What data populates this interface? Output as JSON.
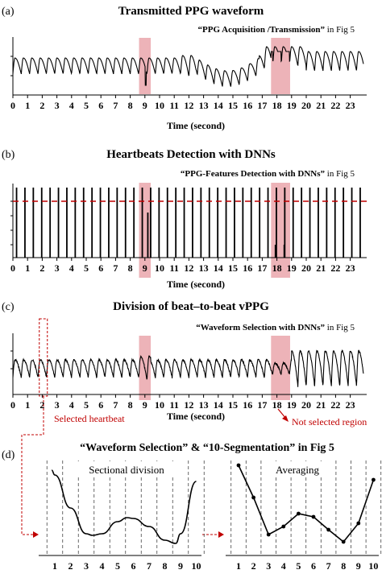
{
  "panels": [
    {
      "letter": "(a)",
      "title": "Transmitted PPG waveform",
      "caption_quote": "“PPG Acquisition /Transmission”",
      "caption_tail": " in Fig 5",
      "xlabel": "Time (second)",
      "ticks": [
        "0",
        "1",
        "2",
        "3",
        "4",
        "5",
        "6",
        "7",
        "8",
        "9",
        "10",
        "11",
        "12",
        "13",
        "14",
        "15",
        "16",
        "17",
        "18",
        "19",
        "20",
        "21",
        "22",
        "23"
      ]
    },
    {
      "letter": "(b)",
      "title": "Heartbeats Detection with DNNs",
      "caption_quote": "“PPG-Features Detection with DNNs”",
      "caption_tail": " in Fig 5",
      "xlabel": "Time (second)",
      "ticks": [
        "0",
        "1",
        "2",
        "3",
        "4",
        "5",
        "6",
        "7",
        "8",
        "9",
        "10",
        "11",
        "12",
        "13",
        "14",
        "15",
        "16",
        "17",
        "18",
        "19",
        "20",
        "21",
        "22",
        "23"
      ]
    },
    {
      "letter": "(c)",
      "title": "Division of beat–to-beat vPPG",
      "caption_quote": "“Waveform Selection with DNNs”",
      "caption_tail": " in Fig 5",
      "xlabel": "Time (second)",
      "ticks": [
        "0",
        "1",
        "2",
        "3",
        "4",
        "5",
        "6",
        "7",
        "8",
        "9",
        "10",
        "11",
        "12",
        "13",
        "14",
        "15",
        "16",
        "17",
        "18",
        "19",
        "20",
        "21",
        "22",
        "23"
      ],
      "selected_label": "Selected heartbeat",
      "not_selected_label": "Not selected region"
    }
  ],
  "panel_d": {
    "letter": "(d)",
    "title": "“Waveform Selection” & “10-Segmentation” in Fig 5",
    "left_label": "Sectional division",
    "right_label": "Averaging",
    "ticks": [
      "1",
      "2",
      "3",
      "4",
      "5",
      "6",
      "7",
      "8",
      "9",
      "10"
    ]
  },
  "chart_data": [
    {
      "type": "line",
      "panel": "a",
      "x_range": [
        0,
        24
      ],
      "highlight_regions": [
        [
          8.6,
          9.4
        ],
        [
          17.6,
          18.9
        ]
      ],
      "heart_rate_beats_per_second": 1.75
    },
    {
      "type": "bar",
      "panel": "b",
      "x_range": [
        0,
        24
      ],
      "threshold_line": "dashed-red",
      "highlight_regions": [
        [
          8.6,
          9.4
        ],
        [
          17.6,
          18.9
        ]
      ],
      "low_spike_times": [
        9.2,
        17.9,
        18.5
      ]
    },
    {
      "type": "line",
      "panel": "c",
      "x_range": [
        0,
        24
      ],
      "highlight_regions": [
        [
          8.6,
          9.4
        ],
        [
          17.6,
          18.9
        ]
      ],
      "selected_beat_window": [
        1.8,
        2.35
      ]
    },
    {
      "type": "line",
      "panel": "d-left",
      "x": [
        0.8,
        1,
        2,
        3,
        3.4,
        4,
        5,
        5.6,
        6,
        7,
        8,
        8.7,
        9,
        10
      ],
      "y": [
        0.92,
        0.86,
        0.45,
        0.13,
        0.11,
        0.13,
        0.28,
        0.33,
        0.32,
        0.22,
        0.05,
        0.01,
        0.13,
        0.78
      ]
    },
    {
      "type": "line",
      "panel": "d-right",
      "x": [
        1,
        2,
        3,
        4,
        5,
        6,
        7,
        8,
        9,
        10
      ],
      "y": [
        0.98,
        0.58,
        0.12,
        0.22,
        0.38,
        0.34,
        0.18,
        0.03,
        0.26,
        0.8
      ]
    }
  ]
}
